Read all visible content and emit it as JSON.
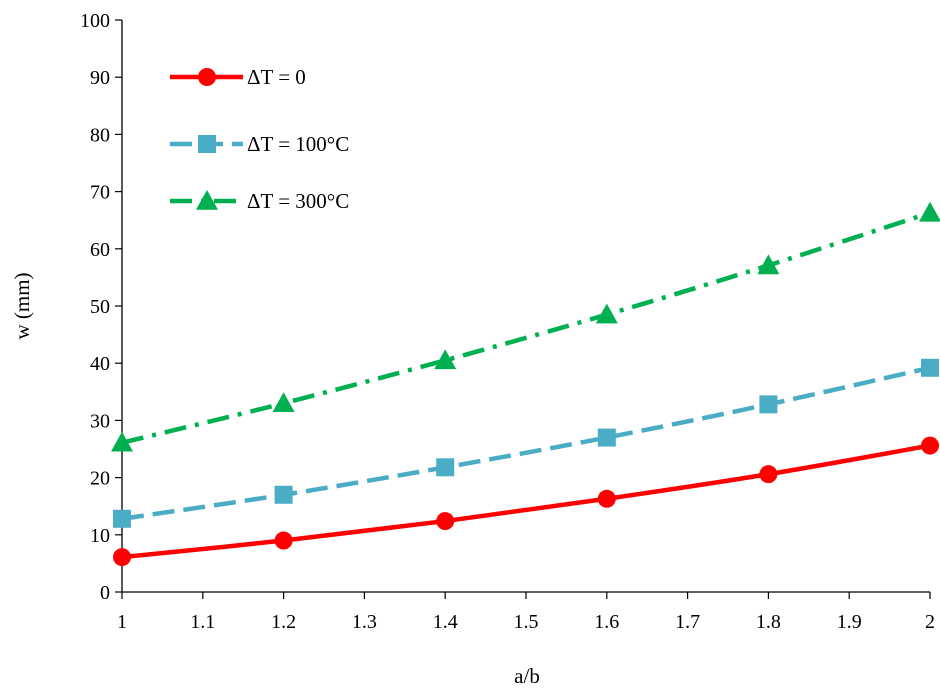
{
  "chart_data": {
    "type": "line",
    "xlabel": "a/b",
    "ylabel": "w (mm)",
    "xlim": [
      1,
      2
    ],
    "ylim": [
      0,
      100
    ],
    "xticks": [
      "1",
      "1.1",
      "1.2",
      "1.3",
      "1.4",
      "1.5",
      "1.6",
      "1.7",
      "1.8",
      "1.9",
      "2"
    ],
    "yticks": [
      "0",
      "10",
      "20",
      "30",
      "40",
      "50",
      "60",
      "70",
      "80",
      "90",
      "100"
    ],
    "grid": false,
    "legend_position": "top-left",
    "series": [
      {
        "name": "ΔT = 0",
        "color": "#ff0000",
        "line_style": "solid",
        "marker": "circle",
        "x": [
          1,
          1.2,
          1.4,
          1.6,
          1.8,
          2
        ],
        "y": [
          6.1,
          9.0,
          12.4,
          16.3,
          20.6,
          25.6
        ]
      },
      {
        "name": "ΔT = 100°C",
        "color": "#4bacc6",
        "line_style": "dashed",
        "marker": "square",
        "x": [
          1,
          1.2,
          1.4,
          1.6,
          1.8,
          2
        ],
        "y": [
          12.8,
          17.0,
          21.8,
          27.0,
          32.8,
          39.2
        ]
      },
      {
        "name": "ΔT = 300°C",
        "color": "#00b050",
        "line_style": "dash-dot",
        "marker": "triangle",
        "x": [
          1,
          1.2,
          1.4,
          1.6,
          1.8,
          2
        ],
        "y": [
          26.1,
          33.0,
          40.5,
          48.5,
          57.1,
          66.3
        ]
      }
    ]
  }
}
